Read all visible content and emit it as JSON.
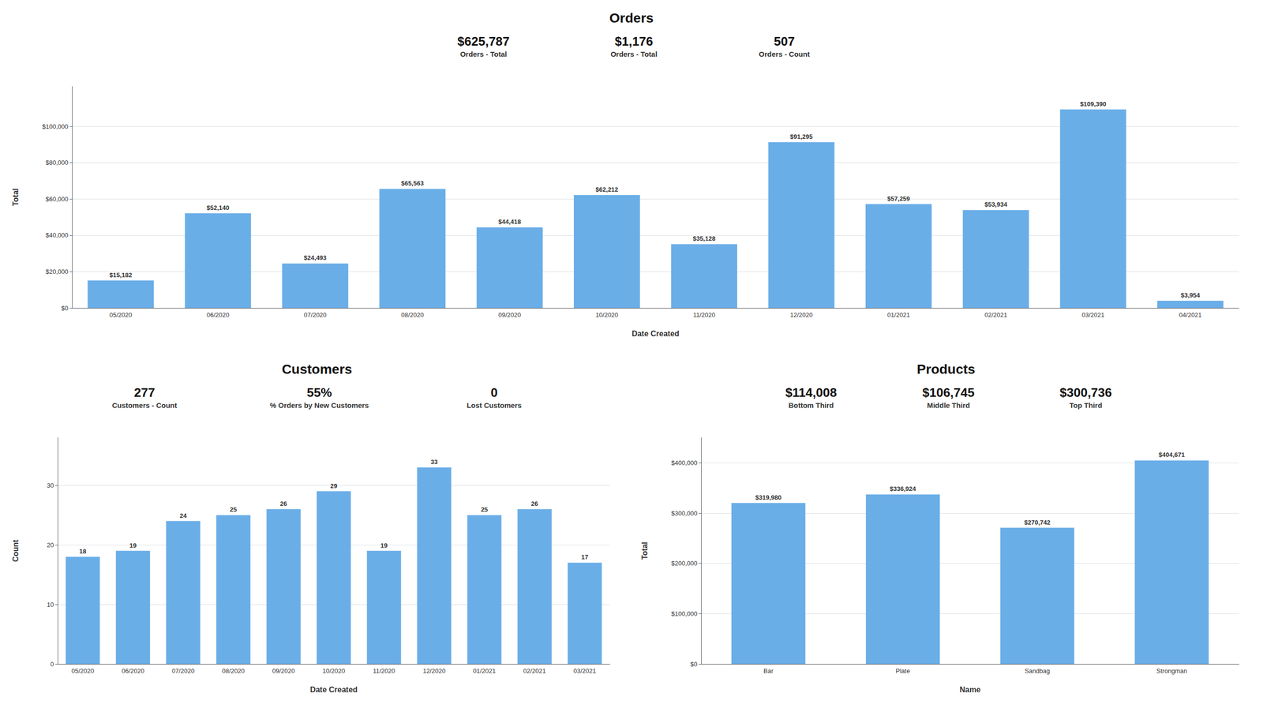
{
  "chart_data": [
    {
      "type": "bar",
      "title": "Orders",
      "annotations": [
        [
          "$625,787",
          "Orders - Total"
        ],
        [
          "$1,176",
          "Orders - Total"
        ],
        [
          "507",
          "Orders - Count"
        ]
      ],
      "categories": [
        "05/2020",
        "06/2020",
        "07/2020",
        "08/2020",
        "09/2020",
        "10/2020",
        "11/2020",
        "12/2020",
        "01/2021",
        "02/2021",
        "03/2021",
        "04/2021"
      ],
      "values": [
        15182,
        52140,
        24493,
        65563,
        44418,
        62212,
        35128,
        91295,
        57259,
        53934,
        109390,
        3954
      ],
      "value_labels": [
        "$15,182",
        "$52,140",
        "$24,493",
        "$65,563",
        "$44,418",
        "$62,212",
        "$35,128",
        "$91,295",
        "$57,259",
        "$53,934",
        "$109,390",
        "$3,954"
      ],
      "data_labels": true,
      "color": "#6aaee8",
      "xlabel": "Date Created",
      "ylabel": "Total",
      "ylim": [
        0,
        122000
      ],
      "yticks": [
        {
          "value": 0,
          "label": "$0"
        },
        {
          "value": 20000,
          "label": "$20,000"
        },
        {
          "value": 40000,
          "label": "$40,000"
        },
        {
          "value": 60000,
          "label": "$60,000"
        },
        {
          "value": 80000,
          "label": "$80,000"
        },
        {
          "value": 100000,
          "label": "$100,000"
        }
      ],
      "grid": true
    },
    {
      "type": "bar",
      "title": "Customers",
      "annotations": [
        [
          "277",
          "Customers - Count"
        ],
        [
          "55%",
          "% Orders by New Customers"
        ],
        [
          "0",
          "Lost Customers"
        ]
      ],
      "categories": [
        "05/2020",
        "06/2020",
        "07/2020",
        "08/2020",
        "09/2020",
        "10/2020",
        "11/2020",
        "12/2020",
        "01/2021",
        "02/2021",
        "03/2021"
      ],
      "values": [
        18,
        19,
        24,
        25,
        26,
        29,
        19,
        33,
        25,
        26,
        17
      ],
      "data_labels": true,
      "color": "#6aaee8",
      "xlabel": "Date Created",
      "ylabel": "Count",
      "ylim": [
        0,
        38
      ],
      "yticks": [
        0,
        10,
        20,
        30
      ],
      "grid": true
    },
    {
      "type": "bar",
      "title": "Products",
      "annotations": [
        [
          "$114,008",
          "Bottom Third"
        ],
        [
          "$106,745",
          "Middle Third"
        ],
        [
          "$300,736",
          "Top Third"
        ]
      ],
      "categories": [
        "Bar",
        "Plate",
        "Sandbag",
        "Strongman"
      ],
      "values": [
        319980,
        336924,
        270742,
        404671
      ],
      "value_labels": [
        "$319,980",
        "$336,924",
        "$270,742",
        "$404,671"
      ],
      "data_labels": true,
      "color": "#6aaee8",
      "xlabel": "Name",
      "ylabel": "Total",
      "ylim": [
        0,
        450000
      ],
      "yticks": [
        {
          "value": 0,
          "label": "$0"
        },
        {
          "value": 100000,
          "label": "$100,000"
        },
        {
          "value": 200000,
          "label": "$200,000"
        },
        {
          "value": 300000,
          "label": "$300,000"
        },
        {
          "value": 400000,
          "label": "$400,000"
        }
      ],
      "grid": true
    }
  ]
}
